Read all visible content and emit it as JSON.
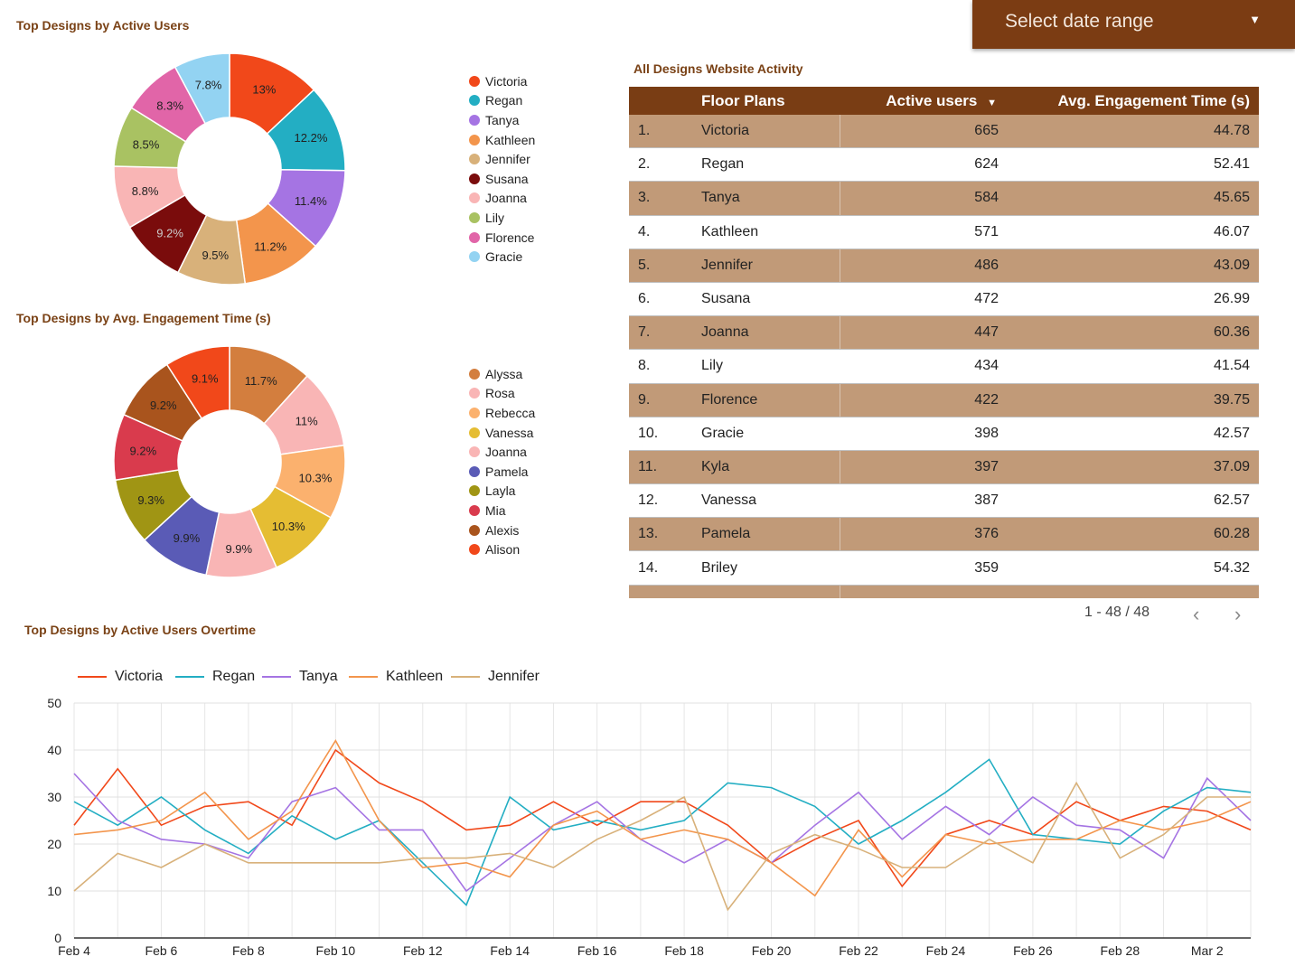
{
  "header": {
    "date_range_label": "Select date range"
  },
  "donut1": {
    "title": "Top Designs by Active Users",
    "chart_data": {
      "type": "pie",
      "title": "Top Designs by Active Users",
      "slices": [
        {
          "label": "Victoria",
          "value": 13,
          "display": "13%",
          "color": "#f1481a",
          "text": "#222"
        },
        {
          "label": "Regan",
          "value": 12.2,
          "display": "12.2%",
          "color": "#23aec3",
          "text": "#222"
        },
        {
          "label": "Tanya",
          "value": 11.4,
          "display": "11.4%",
          "color": "#a574e3",
          "text": "#222"
        },
        {
          "label": "Kathleen",
          "value": 11.2,
          "display": "11.2%",
          "color": "#f3954c",
          "text": "#222"
        },
        {
          "label": "Jennifer",
          "value": 9.5,
          "display": "9.5%",
          "color": "#d8b17a",
          "text": "#222"
        },
        {
          "label": "Susana",
          "value": 9.2,
          "display": "9.2%",
          "color": "#7a0c0c",
          "text": "#cccccc"
        },
        {
          "label": "Joanna",
          "value": 8.8,
          "display": "8.8%",
          "color": "#f9b5b5",
          "text": "#222"
        },
        {
          "label": "Lily",
          "value": 8.5,
          "display": "8.5%",
          "color": "#a9c262",
          "text": "#222"
        },
        {
          "label": "Florence",
          "value": 8.3,
          "display": "8.3%",
          "color": "#e165a8",
          "text": "#222"
        },
        {
          "label": "Gracie",
          "value": 7.8,
          "display": "7.8%",
          "color": "#93d3f2",
          "text": "#222"
        }
      ]
    }
  },
  "donut2": {
    "title": "Top Designs by Avg. Engagement Time (s)",
    "chart_data": {
      "type": "pie",
      "title": "Top Designs by Avg. Engagement Time (s)",
      "slices": [
        {
          "label": "Alyssa",
          "value": 11.7,
          "display": "11.7%",
          "color": "#d37e3e",
          "text": "#222"
        },
        {
          "label": "Rosa",
          "value": 11,
          "display": "11%",
          "color": "#f9b5b5",
          "text": "#222"
        },
        {
          "label": "Rebecca",
          "value": 10.3,
          "display": "10.3%",
          "color": "#fbb16e",
          "text": "#222"
        },
        {
          "label": "Vanessa",
          "value": 10.3,
          "display": "10.3%",
          "color": "#e5bd33",
          "text": "#222"
        },
        {
          "label": "Joanna",
          "value": 9.9,
          "display": "9.9%",
          "color": "#f9b5b5",
          "text": "#222"
        },
        {
          "label": "Pamela",
          "value": 9.9,
          "display": "9.9%",
          "color": "#5a5bb6",
          "text": "#222"
        },
        {
          "label": "Layla",
          "value": 9.3,
          "display": "9.3%",
          "color": "#a09514",
          "text": "#222"
        },
        {
          "label": "Mia",
          "value": 9.2,
          "display": "9.2%",
          "color": "#d93b4d",
          "text": "#222"
        },
        {
          "label": "Alexis",
          "value": 9.2,
          "display": "9.2%",
          "color": "#a9541d",
          "text": "#222"
        },
        {
          "label": "Alison",
          "value": 9.1,
          "display": "9.1%",
          "color": "#f1481a",
          "text": "#222"
        }
      ]
    }
  },
  "table": {
    "title": "All Designs Website Activity",
    "headers": {
      "name": "Floor Plans",
      "users": "Active users",
      "engagement": "Avg. Engagement Time (s)"
    },
    "sort_icon": "sort-desc-icon",
    "rows": [
      {
        "idx": "1.",
        "name": "Victoria",
        "users": "665",
        "eng": "44.78"
      },
      {
        "idx": "2.",
        "name": "Regan",
        "users": "624",
        "eng": "52.41"
      },
      {
        "idx": "3.",
        "name": "Tanya",
        "users": "584",
        "eng": "45.65"
      },
      {
        "idx": "4.",
        "name": "Kathleen",
        "users": "571",
        "eng": "46.07"
      },
      {
        "idx": "5.",
        "name": "Jennifer",
        "users": "486",
        "eng": "43.09"
      },
      {
        "idx": "6.",
        "name": "Susana",
        "users": "472",
        "eng": "26.99"
      },
      {
        "idx": "7.",
        "name": "Joanna",
        "users": "447",
        "eng": "60.36"
      },
      {
        "idx": "8.",
        "name": "Lily",
        "users": "434",
        "eng": "41.54"
      },
      {
        "idx": "9.",
        "name": "Florence",
        "users": "422",
        "eng": "39.75"
      },
      {
        "idx": "10.",
        "name": "Gracie",
        "users": "398",
        "eng": "42.57"
      },
      {
        "idx": "11.",
        "name": "Kyla",
        "users": "397",
        "eng": "37.09"
      },
      {
        "idx": "12.",
        "name": "Vanessa",
        "users": "387",
        "eng": "62.57"
      },
      {
        "idx": "13.",
        "name": "Pamela",
        "users": "376",
        "eng": "60.28"
      },
      {
        "idx": "14.",
        "name": "Briley",
        "users": "359",
        "eng": "54.32"
      }
    ],
    "pagination": "1 - 48 / 48",
    "prev_icon": "chevron-left-icon",
    "next_icon": "chevron-right-icon"
  },
  "line": {
    "title": "Top Designs by Active Users Overtime",
    "chart_data": {
      "type": "line",
      "title": "Top Designs by Active Users Overtime",
      "ylim": [
        0,
        50
      ],
      "yticks": [
        0,
        10,
        20,
        30,
        40,
        50
      ],
      "xticks": [
        "Feb 4",
        "Feb 6",
        "Feb 8",
        "Feb 10",
        "Feb 12",
        "Feb 14",
        "Feb 16",
        "Feb 18",
        "Feb 20",
        "Feb 22",
        "Feb 24",
        "Feb 26",
        "Feb 28",
        "Mar 2"
      ],
      "x": [
        "Feb 4",
        "Feb 5",
        "Feb 6",
        "Feb 7",
        "Feb 8",
        "Feb 9",
        "Feb 10",
        "Feb 11",
        "Feb 12",
        "Feb 13",
        "Feb 14",
        "Feb 15",
        "Feb 16",
        "Feb 17",
        "Feb 18",
        "Feb 19",
        "Feb 20",
        "Feb 21",
        "Feb 22",
        "Feb 23",
        "Feb 24",
        "Feb 25",
        "Feb 26",
        "Feb 27",
        "Feb 28",
        "Mar 1",
        "Mar 2",
        "Mar 3"
      ],
      "series": [
        {
          "name": "Victoria",
          "color": "#f1481a",
          "values": [
            24,
            36,
            24,
            28,
            29,
            24,
            40,
            33,
            29,
            23,
            24,
            29,
            24,
            29,
            29,
            24,
            16,
            21,
            25,
            11,
            22,
            25,
            22,
            29,
            25,
            28,
            27,
            23
          ]
        },
        {
          "name": "Regan",
          "color": "#23aec3",
          "values": [
            29,
            24,
            30,
            23,
            18,
            26,
            21,
            25,
            16,
            7,
            30,
            23,
            25,
            23,
            25,
            33,
            32,
            28,
            20,
            25,
            31,
            38,
            22,
            21,
            20,
            27,
            32,
            31
          ]
        },
        {
          "name": "Tanya",
          "color": "#a574e3",
          "values": [
            35,
            25,
            21,
            20,
            17,
            29,
            32,
            23,
            23,
            10,
            17,
            24,
            29,
            21,
            16,
            21,
            16,
            24,
            31,
            21,
            28,
            22,
            30,
            24,
            23,
            17,
            34,
            25
          ]
        },
        {
          "name": "Kathleen",
          "color": "#f3954c",
          "values": [
            22,
            23,
            25,
            31,
            21,
            27,
            42,
            25,
            15,
            16,
            13,
            24,
            27,
            21,
            23,
            21,
            16,
            9,
            23,
            13,
            22,
            20,
            21,
            21,
            25,
            23,
            25,
            29
          ]
        },
        {
          "name": "Jennifer",
          "color": "#d8b17a",
          "values": [
            10,
            18,
            15,
            20,
            16,
            16,
            16,
            16,
            17,
            17,
            18,
            15,
            21,
            25,
            30,
            6,
            18,
            22,
            19,
            15,
            15,
            21,
            16,
            33,
            17,
            22,
            30,
            30
          ]
        }
      ]
    }
  }
}
